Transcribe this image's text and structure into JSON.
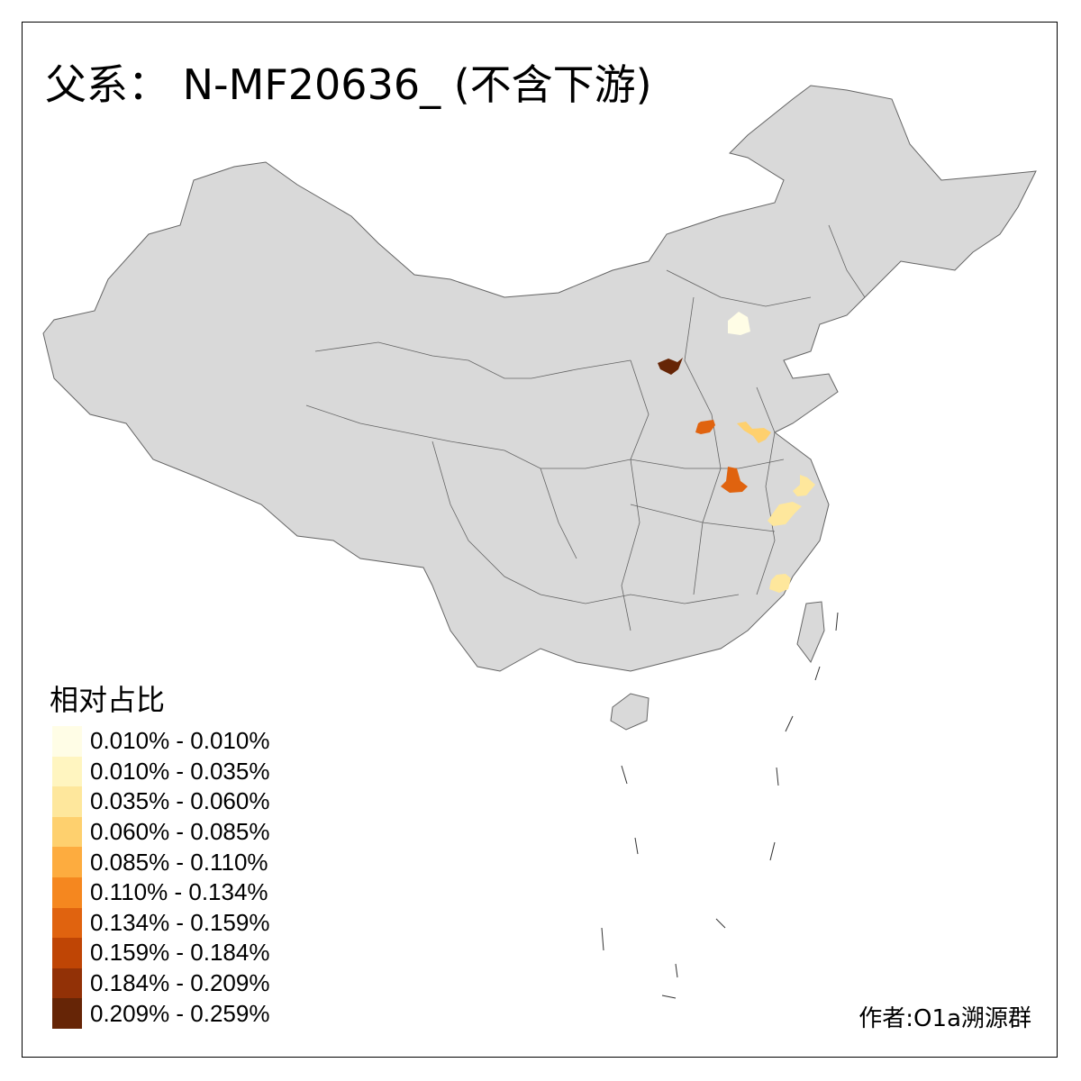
{
  "title": "父系： N-MF20636_ (不含下游)",
  "legend": {
    "title": "相对占比",
    "items": [
      {
        "label": "0.010% - 0.010%",
        "color": "#FFFDE6"
      },
      {
        "label": "0.010% - 0.035%",
        "color": "#FFF5C0"
      },
      {
        "label": "0.035% - 0.060%",
        "color": "#FEE79C"
      },
      {
        "label": "0.060% - 0.085%",
        "color": "#FED06E"
      },
      {
        "label": "0.085% - 0.110%",
        "color": "#FDAC3F"
      },
      {
        "label": "0.110% - 0.134%",
        "color": "#F5871F"
      },
      {
        "label": "0.134% - 0.159%",
        "color": "#E0630F"
      },
      {
        "label": "0.159% - 0.184%",
        "color": "#BF4505"
      },
      {
        "label": "0.184% - 0.209%",
        "color": "#923106"
      },
      {
        "label": "0.209% - 0.259%",
        "color": "#662506"
      }
    ]
  },
  "map": {
    "base_color": "#D9D9D9",
    "border_color": "#646464"
  },
  "credit": "作者:O1a溯源群"
}
